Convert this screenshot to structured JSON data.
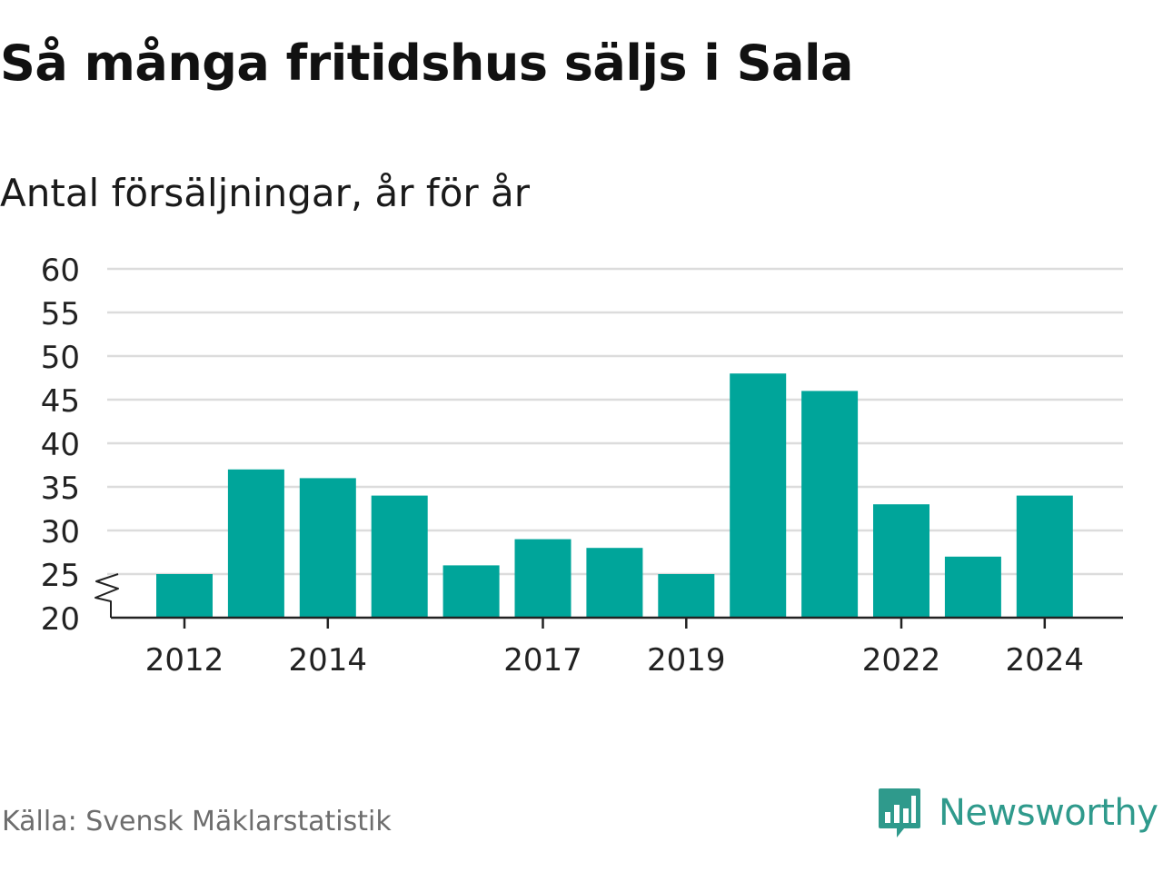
{
  "title": "Så många fritidshus säljs i Sala",
  "subtitle": "Antal försäljningar, år för år",
  "source": "Källa: Svensk Mäklarstatistik",
  "brand": {
    "name": "Newsworthy",
    "icon": "newsworthy-logo-icon"
  },
  "colors": {
    "bar": "#00a59a",
    "grid": "#dcdcdc",
    "axis": "#222222",
    "text": "#222222",
    "brand": "#2f9a8c"
  },
  "chart_data": {
    "type": "bar",
    "categories": [
      "2012",
      "2013",
      "2014",
      "2015",
      "2016",
      "2017",
      "2018",
      "2019",
      "2020",
      "2021",
      "2022",
      "2023",
      "2024"
    ],
    "values": [
      25,
      37,
      36,
      34,
      26,
      29,
      28,
      25,
      48,
      46,
      33,
      27,
      34
    ],
    "x_tick_labels": [
      "2012",
      "2014",
      "2017",
      "2019",
      "2022",
      "2024"
    ],
    "y_ticks": [
      20,
      25,
      30,
      35,
      40,
      45,
      50,
      55,
      60
    ],
    "ylim": [
      20,
      60
    ],
    "y_axis_break": true,
    "grid": true,
    "legend": "none",
    "xlabel": "",
    "ylabel": ""
  }
}
